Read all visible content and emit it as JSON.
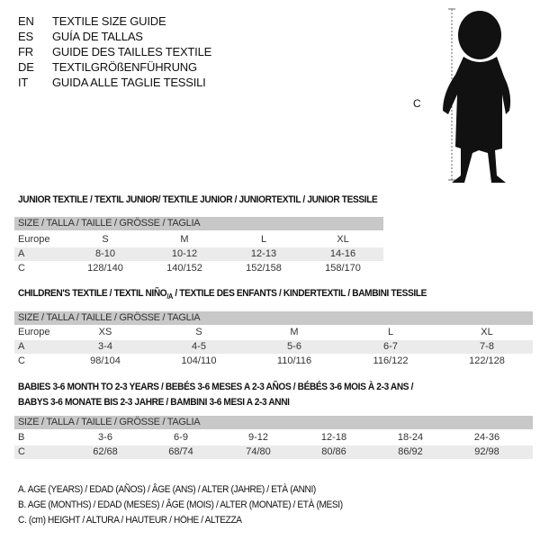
{
  "languages": [
    {
      "code": "EN",
      "title": "TEXTILE SIZE GUIDE"
    },
    {
      "code": "ES",
      "title": "GUÍA DE TALLAS"
    },
    {
      "code": "FR",
      "title": "GUIDE DES TAILLES TEXTILE"
    },
    {
      "code": "DE",
      "title": "TEXTILGRÖßENFÜHRUNG"
    },
    {
      "code": "IT",
      "title": "GUIDA ALLE TAGLIE TESSILI"
    }
  ],
  "figure": {
    "measure_label": "C",
    "icon": "baby-silhouette"
  },
  "size_header": "SIZE / TALLA / TAILLE / GRÖSSE / TAGLIA",
  "junior": {
    "title": "JUNIOR TEXTILE / TEXTIL JUNIOR/ TEXTILE JUNIOR / JUNIORTEXTIL / JUNIOR TESSILE",
    "rows": [
      {
        "label": "Europe",
        "values": [
          "S",
          "M",
          "L",
          "XL"
        ]
      },
      {
        "label": "A",
        "values": [
          "8-10",
          "10-12",
          "12-13",
          "14-16"
        ]
      },
      {
        "label": "C",
        "values": [
          "128/140",
          "140/152",
          "152/158",
          "158/170"
        ]
      }
    ]
  },
  "children": {
    "title_a": "CHILDREN'S TEXTILE / TEXTIL NIÑO",
    "title_sub": "/A",
    "title_b": " / TEXTILE DES ENFANTS / KINDERTEXTIL / BAMBINI TESSILE",
    "rows": [
      {
        "label": "Europe",
        "values": [
          "XS",
          "S",
          "M",
          "L",
          "XL"
        ]
      },
      {
        "label": "A",
        "values": [
          "3-4",
          "4-5",
          "5-6",
          "6-7",
          "7-8"
        ]
      },
      {
        "label": "C",
        "values": [
          "98/104",
          "104/110",
          "110/116",
          "116/122",
          "122/128"
        ]
      }
    ]
  },
  "babies": {
    "title_line1": "BABIES 3-6 MONTH TO 2-3 YEARS / BEBÉS 3-6 MESES A 2-3 AÑOS / BÉBÉS 3-6 MOIS À 2-3 ANS /",
    "title_line2": "BABYS 3-6 MONATE BIS 2-3 JAHRE / BAMBINI 3-6 MESI A 2-3 ANNI",
    "rows": [
      {
        "label": "B",
        "values": [
          "3-6",
          "6-9",
          "9-12",
          "12-18",
          "18-24",
          "24-36"
        ]
      },
      {
        "label": "C",
        "values": [
          "62/68",
          "68/74",
          "74/80",
          "80/86",
          "86/92",
          "92/98"
        ]
      }
    ]
  },
  "legend": [
    "A. AGE (YEARS) / EDAD (AÑOS) / ÂGE (ANS) / ALTER (JAHRE) / ETÀ (ANNI)",
    "B. AGE (MONTHS) / EDAD (MESES) / ÂGE (MOIS) / ALTER (MONATE) / ETÀ (MESI)",
    "C. (cm) HEIGHT / ALTURA / HAUTEUR / HÖHE / ALTEZZA"
  ]
}
